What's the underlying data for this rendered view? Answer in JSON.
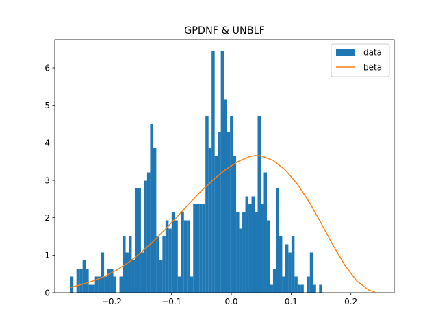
{
  "chart_data": {
    "type": "bar",
    "title": "GPDNF & UNBLF",
    "xlabel": "",
    "ylabel": "",
    "xlim": [
      -0.2955,
      0.2725
    ],
    "ylim": [
      0,
      6.75
    ],
    "xticks": [
      -0.2,
      -0.1,
      0.0,
      0.1,
      0.2
    ],
    "xtick_labels": [
      "−0.2",
      "−0.1",
      "0.0",
      "0.1",
      "0.2"
    ],
    "yticks": [
      0,
      1,
      2,
      3,
      4,
      5,
      6
    ],
    "ytick_labels": [
      "0",
      "1",
      "2",
      "3",
      "4",
      "5",
      "6"
    ],
    "grid": false,
    "legend": {
      "position": "top-right",
      "entries": [
        {
          "label": "data",
          "type": "patch",
          "color": "#1f77b4"
        },
        {
          "label": "beta",
          "type": "line",
          "color": "#ff7f0e"
        }
      ]
    },
    "histogram": {
      "name": "data",
      "color": "#1f77b4",
      "bin_start": -0.2695,
      "bin_width": 0.00514,
      "values": [
        0.43,
        0,
        0.64,
        0.64,
        0.86,
        0.64,
        0.21,
        0.21,
        0.43,
        0.43,
        1.07,
        0.43,
        0.64,
        0.64,
        0.43,
        0,
        0.43,
        1.5,
        1.07,
        1.5,
        0.86,
        2.79,
        2.79,
        1.07,
        2.99,
        3.21,
        4.5,
        3.86,
        1.5,
        0.86,
        1.5,
        1.93,
        1.71,
        2.14,
        1.93,
        0.43,
        2.14,
        1.93,
        1.93,
        0.43,
        2.36,
        2.36,
        2.36,
        2.36,
        4.72,
        3.86,
        6.44,
        3.64,
        4.29,
        6.44,
        5.15,
        4.29,
        4.72,
        3.64,
        2.14,
        1.71,
        2.14,
        2.57,
        2.36,
        2.57,
        2.14,
        4.72,
        2.36,
        3.21,
        1.93,
        0.21,
        0.64,
        2.79,
        1.5,
        0.43,
        1.29,
        1.07,
        1.5,
        0.43,
        0.21,
        0.21,
        0,
        0.43,
        1.07,
        0.21,
        0,
        0.21
      ]
    },
    "series": [
      {
        "name": "beta",
        "color": "#ff7f0e",
        "x": [
          -0.27,
          -0.25,
          -0.23,
          -0.21,
          -0.19,
          -0.17,
          -0.15,
          -0.13,
          -0.11,
          -0.09,
          -0.07,
          -0.05,
          -0.03,
          -0.01,
          0.01,
          0.03,
          0.04,
          0.05,
          0.07,
          0.09,
          0.11,
          0.13,
          0.15,
          0.17,
          0.19,
          0.21,
          0.23,
          0.24
        ],
        "y": [
          0.14,
          0.22,
          0.32,
          0.45,
          0.62,
          0.83,
          1.09,
          1.38,
          1.7,
          2.04,
          2.39,
          2.72,
          3.02,
          3.28,
          3.49,
          3.63,
          3.66,
          3.65,
          3.53,
          3.28,
          2.91,
          2.43,
          1.86,
          1.27,
          0.73,
          0.31,
          0.07,
          0.02
        ]
      }
    ]
  }
}
